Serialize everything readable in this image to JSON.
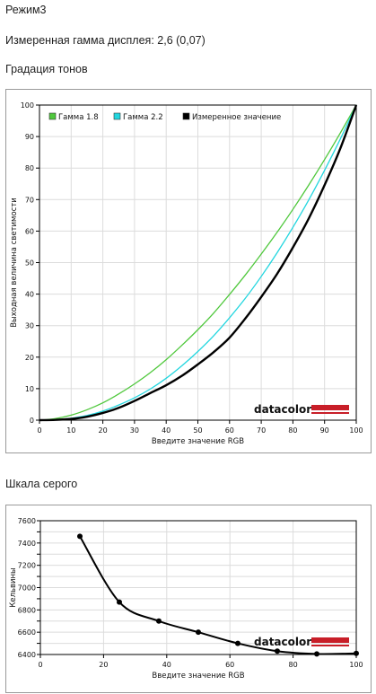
{
  "header": {
    "mode": "Режим3",
    "measured_gamma": "Измеренная гамма дисплея: 2,6 (0,07)",
    "tone_section": "Градация тонов",
    "gray_section": "Шкала серого"
  },
  "logo": {
    "text": "datacolor"
  },
  "colors": {
    "gamma18": "#4fc83c",
    "gamma22": "#22d6df",
    "measured": "#000000",
    "logo_bar": "#c81e28",
    "panel_border": "#9a9a9a"
  },
  "chart_data": [
    {
      "type": "line",
      "xlabel": "Введите значение RGB",
      "ylabel": "Выходная величина светимости",
      "xlim": [
        0,
        100
      ],
      "ylim": [
        0,
        100
      ],
      "xticks": [
        "0",
        "10",
        "20",
        "30",
        "40",
        "50",
        "60",
        "70",
        "80",
        "90",
        "100"
      ],
      "yticks": [
        "0",
        "10",
        "20",
        "30",
        "40",
        "50",
        "60",
        "70",
        "80",
        "90",
        "100"
      ],
      "grid": true,
      "legend": "top",
      "series": [
        {
          "name": "Гамма 1.8",
          "color": "#4fc83c",
          "x": [
            0,
            5,
            10,
            15,
            20,
            25,
            30,
            35,
            40,
            45,
            50,
            55,
            60,
            65,
            70,
            75,
            80,
            85,
            90,
            95,
            100
          ],
          "y": [
            0,
            0.5,
            1.6,
            3.3,
            5.5,
            8.3,
            11.5,
            15.1,
            19.2,
            23.8,
            28.7,
            34.0,
            39.9,
            46.1,
            52.7,
            59.6,
            66.9,
            74.6,
            82.7,
            91.2,
            100
          ]
        },
        {
          "name": "Гамма 2.2",
          "color": "#22d6df",
          "x": [
            0,
            5,
            10,
            15,
            20,
            25,
            30,
            35,
            40,
            45,
            50,
            55,
            60,
            65,
            70,
            75,
            80,
            85,
            90,
            95,
            100
          ],
          "y": [
            0,
            0.1,
            0.6,
            1.5,
            2.9,
            4.8,
            7.1,
            9.9,
            13.3,
            17.3,
            21.8,
            26.8,
            32.5,
            38.7,
            45.6,
            53.1,
            61.2,
            69.9,
            79.3,
            89.3,
            100
          ]
        },
        {
          "name": "Измеренное значение",
          "color": "#000000",
          "x": [
            0,
            5,
            10,
            15,
            20,
            25,
            30,
            35,
            40,
            45,
            50,
            55,
            60,
            65,
            70,
            75,
            80,
            85,
            90,
            95,
            100
          ],
          "y": [
            0,
            0.1,
            0.4,
            1.1,
            2.3,
            3.9,
            6.1,
            8.6,
            11.1,
            14.1,
            17.7,
            21.6,
            26.2,
            32.3,
            39.1,
            46.4,
            54.8,
            64.0,
            74.6,
            86.3,
            100
          ]
        }
      ]
    },
    {
      "type": "line",
      "xlabel": "Введите значение RGB",
      "ylabel": "Кельвины",
      "xlim": [
        0,
        100
      ],
      "ylim": [
        6400,
        7600
      ],
      "xticks": [
        "0",
        "20",
        "40",
        "60",
        "80",
        "100"
      ],
      "yticks": [
        "6400",
        "6500",
        "6600",
        "6700",
        "6800",
        "6900",
        "7000",
        "7100",
        "7200",
        "7300",
        "7400",
        "7500",
        "7600"
      ],
      "grid": true,
      "series": [
        {
          "color": "#000000",
          "x": [
            12.5,
            25,
            37.5,
            50,
            62.5,
            75,
            87.5,
            100
          ],
          "y": [
            7460,
            6870,
            6700,
            6600,
            6500,
            6430,
            6405,
            6410
          ]
        }
      ]
    }
  ]
}
